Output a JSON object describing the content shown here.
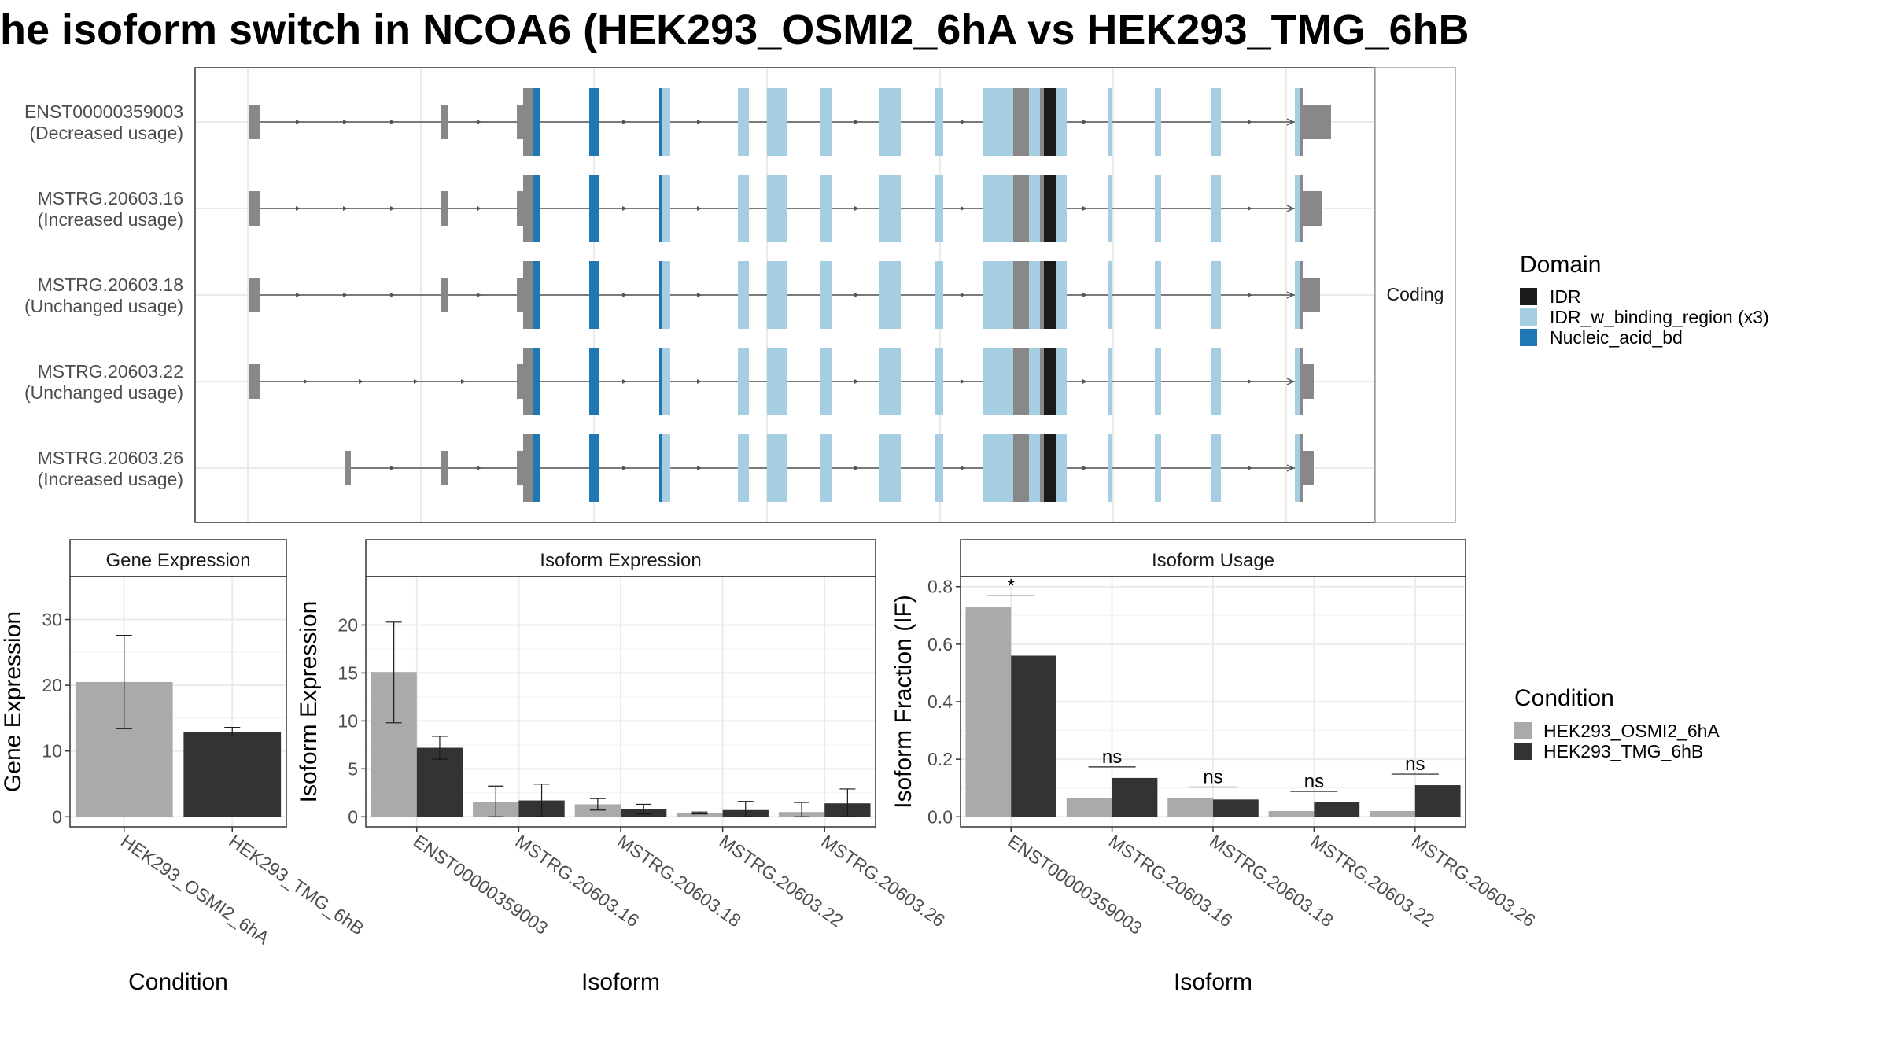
{
  "title": "he isoform switch in NCOA6 (HEK293_OSMI2_6hA vs HEK293_TMG_6hB",
  "colors": {
    "IDR": "#1a1a1a",
    "IDR_w_binding_region": "#a6cee3",
    "Nucleic_acid_bd": "#1f78b4",
    "exon": "#888888",
    "cond_a": "#aaaaaa",
    "cond_b": "#333333",
    "intron": "#555555",
    "panel_border": "#333333",
    "strip_border": "#a0a0a0",
    "grid": "#ebebeb"
  },
  "structure": {
    "strip_label": "Coding",
    "isoforms": [
      {
        "name": "ENST00000359003",
        "usage": "(Decreased usage)"
      },
      {
        "name": "MSTRG.20603.16",
        "usage": "(Increased usage)"
      },
      {
        "name": "MSTRG.20603.18",
        "usage": "(Unchanged usage)"
      },
      {
        "name": "MSTRG.20603.22",
        "usage": "(Unchanged usage)"
      },
      {
        "name": "MSTRG.20603.26",
        "usage": "(Increased usage)"
      }
    ]
  },
  "legend_domain": {
    "title": "Domain",
    "items": [
      {
        "label": "IDR",
        "color_key": "IDR"
      },
      {
        "label": "IDR_w_binding_region (x3)",
        "color_key": "IDR_w_binding_region"
      },
      {
        "label": "Nucleic_acid_bd",
        "color_key": "Nucleic_acid_bd"
      }
    ]
  },
  "legend_condition": {
    "title": "Condition",
    "items": [
      {
        "label": "HEK293_OSMI2_6hA",
        "color_key": "cond_a"
      },
      {
        "label": "HEK293_TMG_6hB",
        "color_key": "cond_b"
      }
    ]
  },
  "chart_data": [
    {
      "type": "bar",
      "title": "Gene Expression",
      "xlabel": "Condition",
      "ylabel": "Gene Expression",
      "categories": [
        "HEK293_OSMI2_6hA",
        "HEK293_TMG_6hB"
      ],
      "ylim": [
        0,
        35
      ],
      "yticks": [
        0,
        10,
        20,
        30
      ],
      "series": [
        {
          "values": [
            20.5,
            12.9
          ],
          "err_low": [
            13.4,
            12.3
          ],
          "err_high": [
            27.6,
            13.6
          ]
        }
      ]
    },
    {
      "type": "bar",
      "title": "Isoform Expression",
      "xlabel": "Isoform",
      "ylabel": "Isoform Expression",
      "categories": [
        "ENST00000359003",
        "MSTRG.20603.16",
        "MSTRG.20603.18",
        "MSTRG.20603.22",
        "MSTRG.20603.26"
      ],
      "ylim": [
        0,
        24
      ],
      "yticks": [
        0,
        5,
        10,
        15,
        20
      ],
      "series": [
        {
          "name": "HEK293_OSMI2_6hA",
          "values": [
            15.1,
            1.5,
            1.3,
            0.4,
            0.5
          ],
          "err_low": [
            9.8,
            0.0,
            0.7,
            0.3,
            0.0
          ],
          "err_high": [
            20.3,
            3.2,
            1.9,
            0.5,
            1.5
          ]
        },
        {
          "name": "HEK293_TMG_6hB",
          "values": [
            7.2,
            1.7,
            0.8,
            0.7,
            1.4
          ],
          "err_low": [
            6.0,
            0.0,
            0.3,
            0.0,
            0.0
          ],
          "err_high": [
            8.4,
            3.4,
            1.3,
            1.6,
            2.9
          ]
        }
      ]
    },
    {
      "type": "bar",
      "title": "Isoform Usage",
      "xlabel": "Isoform",
      "ylabel": "Isoform Fraction (IF)",
      "categories": [
        "ENST00000359003",
        "MSTRG.20603.16",
        "MSTRG.20603.18",
        "MSTRG.20603.22",
        "MSTRG.20603.26"
      ],
      "ylim": [
        0,
        0.8
      ],
      "yticks": [
        0.0,
        0.2,
        0.4,
        0.6,
        0.8
      ],
      "ytick_labels": [
        "0.0",
        "0.2",
        "0.4",
        "0.6",
        "0.8"
      ],
      "series": [
        {
          "name": "HEK293_OSMI2_6hA",
          "values": [
            0.73,
            0.065,
            0.065,
            0.02,
            0.02
          ]
        },
        {
          "name": "HEK293_TMG_6hB",
          "values": [
            0.56,
            0.135,
            0.06,
            0.05,
            0.11
          ]
        }
      ],
      "significance": [
        "*",
        "ns",
        "ns",
        "ns",
        "ns"
      ]
    }
  ]
}
